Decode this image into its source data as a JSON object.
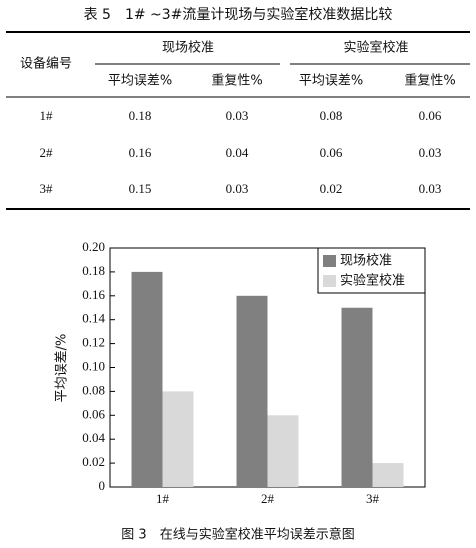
{
  "table": {
    "title": "表 5　1# ~3#流量计现场与实验室校准数据比较",
    "header": {
      "device": "设备编号",
      "groups": [
        "现场校准",
        "实验室校准"
      ],
      "sub": [
        "平均误差%",
        "重复性%",
        "平均误差%",
        "重复性%"
      ]
    },
    "rows": [
      [
        "1#",
        "0.18",
        "0.03",
        "0.08",
        "0.06"
      ],
      [
        "2#",
        "0.16",
        "0.04",
        "0.06",
        "0.03"
      ],
      [
        "3#",
        "0.15",
        "0.03",
        "0.02",
        "0.03"
      ]
    ]
  },
  "chart_data": {
    "type": "bar",
    "y_label": "平均误差/%",
    "categories": [
      "1#",
      "2#",
      "3#"
    ],
    "series": [
      {
        "name": "现场校准",
        "color": "#808080",
        "values": [
          0.18,
          0.16,
          0.15
        ]
      },
      {
        "name": "实验室校准",
        "color": "#d9d9d9",
        "values": [
          0.08,
          0.06,
          0.02
        ]
      }
    ],
    "ylim": [
      0,
      0.2
    ],
    "yticks": [
      0,
      0.02,
      0.04,
      0.06,
      0.08,
      {
        "value": 0.1,
        "label": "0.10"
      },
      0.12,
      0.14,
      0.16,
      0.18,
      {
        "value": 0.2,
        "label": "0.20"
      }
    ],
    "legend": "upper right"
  },
  "caption": "图 3　在线与实验室校准平均误差示意图"
}
